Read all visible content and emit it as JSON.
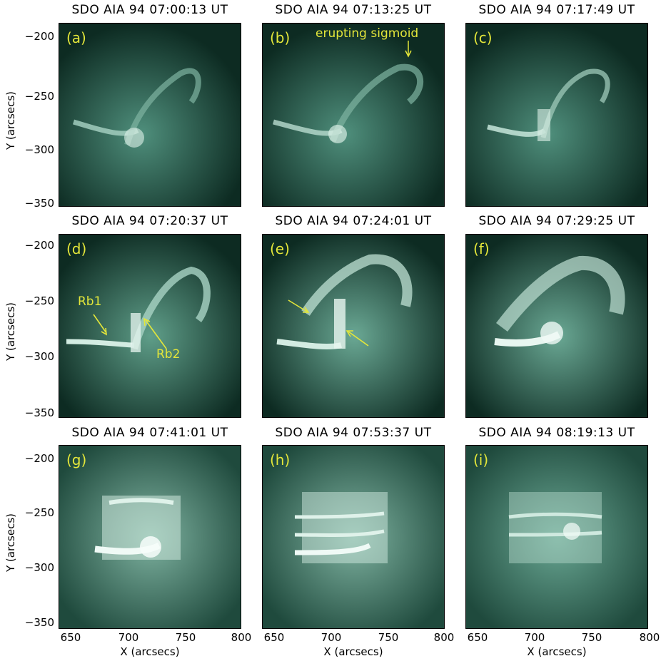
{
  "panels": [
    {
      "title": "SDO AIA 94 07:00:13 UT",
      "label": "(a)"
    },
    {
      "title": "SDO AIA 94 07:13:25 UT",
      "label": "(b)"
    },
    {
      "title": "SDO AIA 94 07:17:49 UT",
      "label": "(c)"
    },
    {
      "title": "SDO AIA 94 07:20:37 UT",
      "label": "(d)"
    },
    {
      "title": "SDO AIA 94 07:24:01 UT",
      "label": "(e)"
    },
    {
      "title": "SDO AIA 94 07:29:25 UT",
      "label": "(f)"
    },
    {
      "title": "SDO AIA 94 07:41:01 UT",
      "label": "(g)"
    },
    {
      "title": "SDO AIA 94 07:53:37 UT",
      "label": "(h)"
    },
    {
      "title": "SDO AIA 94 08:19:13 UT",
      "label": "(i)"
    }
  ],
  "annotations": {
    "sigmoid": "erupting sigmoid",
    "rb1": "Rb1",
    "rb2": "Rb2"
  },
  "axes": {
    "ylabel": "Y (arcsecs)",
    "xlabel": "X (arcsecs)",
    "yticks": [
      "−200",
      "−250",
      "−300",
      "−350"
    ],
    "xticks": [
      "650",
      "700",
      "750",
      "800"
    ]
  },
  "colors": {
    "background": "#0d2b22",
    "emission": "#dff2ea",
    "annotation": "#e3e63a"
  }
}
